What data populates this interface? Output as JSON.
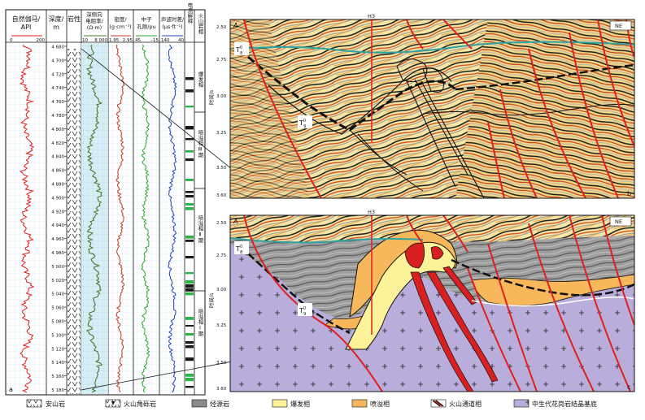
{
  "log_panel": {
    "panel_letter": "a",
    "tracks": [
      {
        "title": "自然伽马/",
        "title2": "API",
        "scale_min": "0",
        "scale_max": "200",
        "color": "#e01b1b"
      },
      {
        "title": "深度/",
        "title2": "m"
      },
      {
        "title": "岩性"
      },
      {
        "title": "深侧向",
        "title2": "电阻率/",
        "title3": "(Ω·m)",
        "scale_min": "10",
        "scale_max": "8 000",
        "color": "#4a7a2a"
      },
      {
        "title": "密度/",
        "title2": "(g·cm⁻³)",
        "scale_min": "1.95",
        "scale_max": "2.95",
        "color": "#c0381e"
      },
      {
        "title": "中子",
        "title2": "孔隙/pu",
        "scale_min": "45",
        "scale_max": "-15",
        "color": "#2aa52a"
      },
      {
        "title": "声波时差/",
        "title2": "(μs·ft⁻¹)",
        "scale_min": "140",
        "scale_max": "40",
        "color": "#2040b0"
      },
      {
        "title": "电测解释"
      },
      {
        "title": "火山岩相"
      }
    ],
    "depths": [
      "4 680",
      "4 700",
      "4 720",
      "4 740",
      "4 760",
      "4 780",
      "4 800",
      "4 820",
      "4 840",
      "4 860",
      "4 880",
      "4 900",
      "4 920",
      "4 940",
      "4 960",
      "4 980",
      "5 000",
      "5 020",
      "5 040",
      "5 060",
      "5 080",
      "5 100",
      "5 120",
      "5 140",
      "5 160",
      "5 180"
    ],
    "facies_labels": [
      "爆发相",
      "喷溢相Ⅲ期",
      "喷溢相Ⅱ期",
      "喷溢相Ⅰ期"
    ]
  },
  "seismic_top": {
    "panel_letter": "b",
    "corner_letter": "A",
    "direction": "NE",
    "well": "H3",
    "time_axis_label": "时间/s",
    "time_ticks": [
      "2.50",
      "2.75",
      "3.00",
      "3.25",
      "3.50"
    ],
    "bottom_tick": "3.60",
    "horizon_labels": [
      "T",
      "T"
    ],
    "horizon_sup": "0",
    "horizon_subs": [
      "8",
      "9"
    ]
  },
  "seismic_bottom": {
    "panel_letter": "c",
    "corner_letter": "A",
    "direction": "NE",
    "well": "H3",
    "time_axis_label": "时间/s",
    "time_ticks": [
      "2.50",
      "2.75",
      "3.00",
      "3.25",
      "3.50"
    ],
    "bottom_tick": "3.60",
    "horizon_labels": [
      "T",
      "T"
    ],
    "horizon_sup": "0",
    "horizon_subs": [
      "8",
      "9"
    ]
  },
  "legend": [
    {
      "label": "安山岩",
      "icon": "andesite-pattern-icon"
    },
    {
      "label": "火山角砾岩",
      "icon": "volcanic-breccia-pattern-icon"
    },
    {
      "label": "烃源岩",
      "icon": "source-rock-swatch-icon",
      "color": "#8a8a8a"
    },
    {
      "label": "爆发相",
      "icon": "explosive-facies-swatch-icon",
      "color": "#fbf29a"
    },
    {
      "label": "喷溢相",
      "icon": "effusive-facies-swatch-icon",
      "color": "#f6b85a"
    },
    {
      "label": "火山通道相",
      "icon": "volcanic-conduit-swatch-icon",
      "color": "#d92020"
    },
    {
      "label": "中生代花岗岩结晶基底",
      "icon": "granite-basement-swatch-icon",
      "color": "#b9aedb"
    }
  ],
  "colors": {
    "fault": "#e0201d",
    "basement": "#b9aedb",
    "explosive": "#fbf29a",
    "effusive": "#f6b85a",
    "conduit": "#d92020",
    "source_rock": "#8a8a8a",
    "well": "#e0201d"
  }
}
